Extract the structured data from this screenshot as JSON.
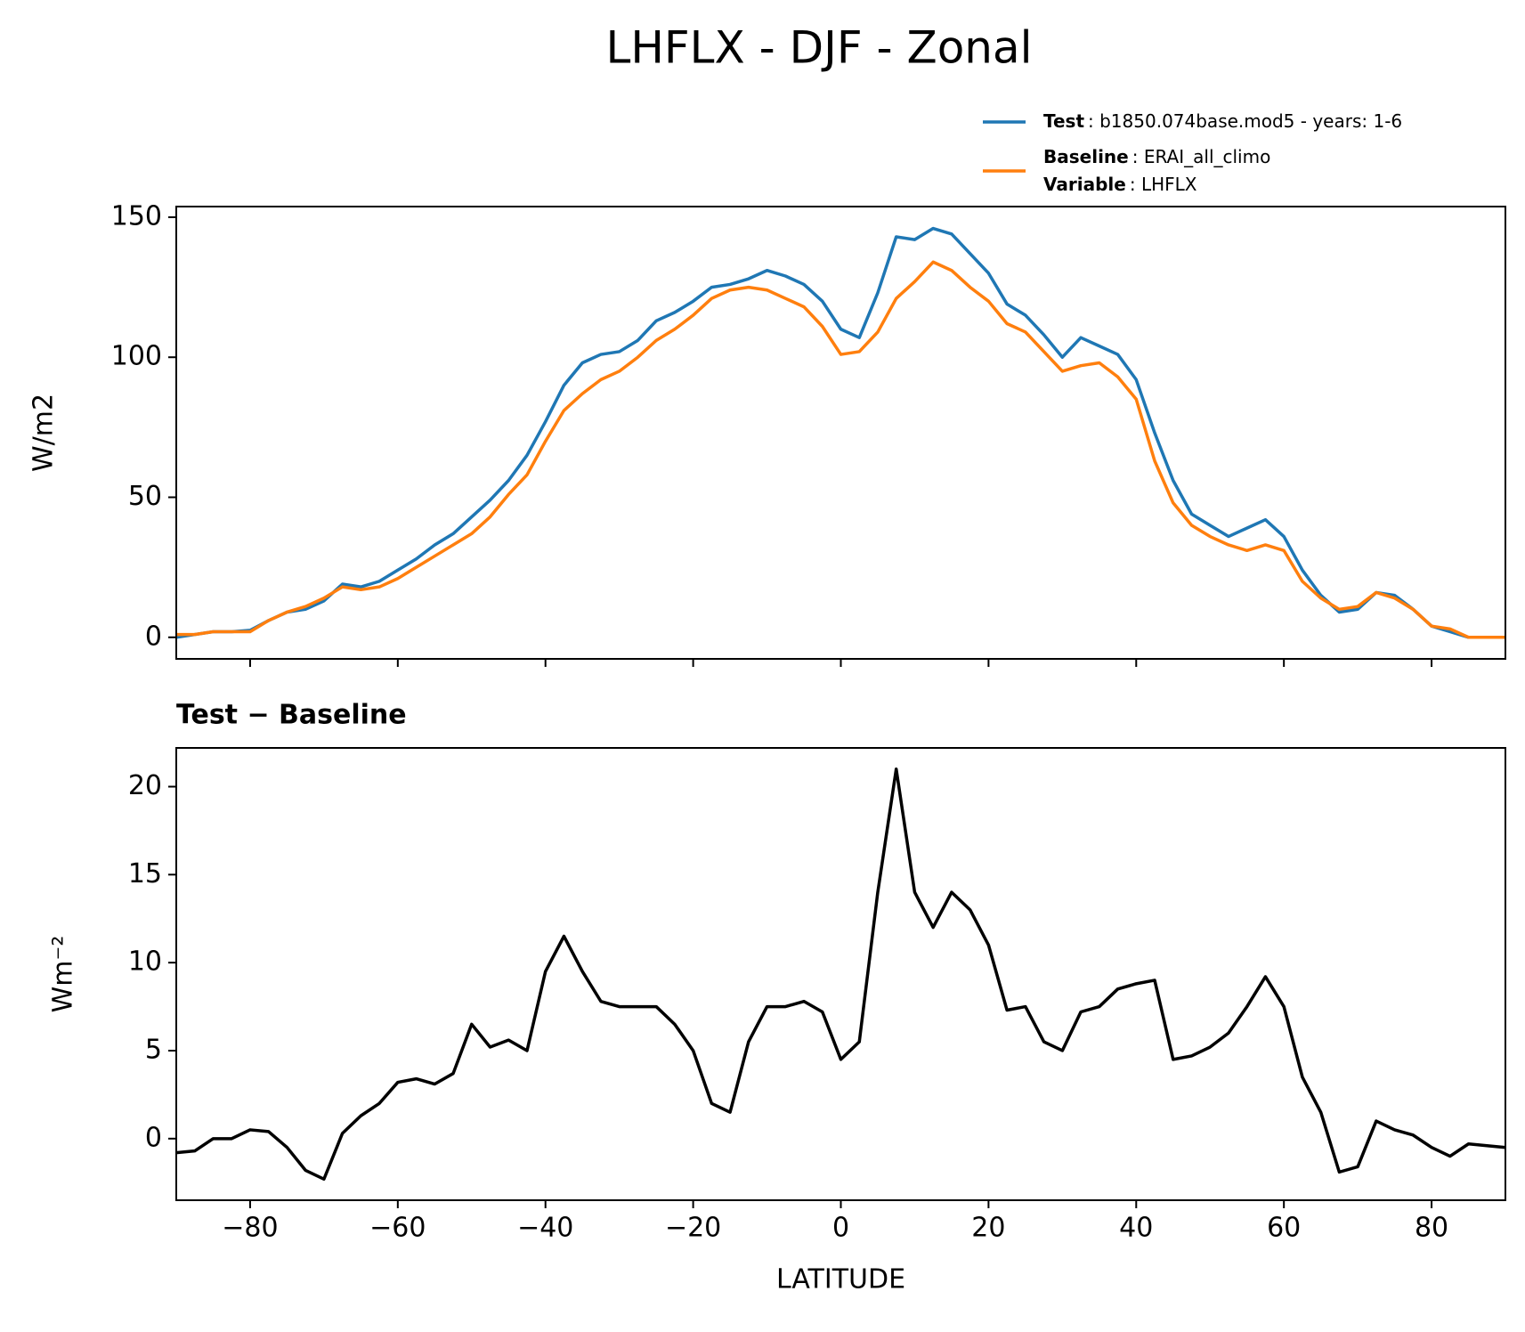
{
  "chart_data": [
    {
      "type": "line",
      "title": "LHFLX - DJF - Zonal",
      "ylabel": "W/m2",
      "x": [
        -90,
        -87.5,
        -85,
        -82.5,
        -80,
        -77.5,
        -75,
        -72.5,
        -70,
        -67.5,
        -65,
        -62.5,
        -60,
        -57.5,
        -55,
        -52.5,
        -50,
        -47.5,
        -45,
        -42.5,
        -40,
        -37.5,
        -35,
        -32.5,
        -30,
        -27.5,
        -25,
        -22.5,
        -20,
        -17.5,
        -15,
        -12.5,
        -10,
        -7.5,
        -5,
        -2.5,
        0,
        2.5,
        5,
        7.5,
        10,
        12.5,
        15,
        17.5,
        20,
        22.5,
        25,
        27.5,
        30,
        32.5,
        35,
        37.5,
        40,
        42.5,
        45,
        47.5,
        50,
        52.5,
        55,
        57.5,
        60,
        62.5,
        65,
        67.5,
        70,
        72.5,
        75,
        77.5,
        80,
        82.5,
        85,
        87.5,
        90
      ],
      "series": [
        {
          "name": "Test",
          "description": ": b1850.074base.mod5 - years: 1-6",
          "color": "#1f77b4",
          "values": [
            0,
            1,
            2,
            2,
            2.5,
            6,
            9,
            10,
            13,
            19,
            18,
            20,
            24,
            28,
            33,
            37,
            43,
            49,
            56,
            65,
            77,
            90,
            98,
            101,
            102,
            106,
            113,
            116,
            120,
            125,
            126,
            128,
            131,
            129,
            126,
            120,
            110,
            107,
            123,
            143,
            142,
            146,
            144,
            137,
            130,
            119,
            115,
            108,
            100,
            107,
            104,
            101,
            92,
            73,
            56,
            44,
            40,
            36,
            39,
            42,
            36,
            24,
            15,
            9,
            10,
            16,
            15,
            10,
            4,
            2,
            0,
            0,
            0
          ]
        },
        {
          "name": "Baseline",
          "description": ": ERAI_all_climo",
          "color": "#ff7f0e",
          "values": [
            1,
            1,
            2,
            2,
            2,
            6,
            9,
            11,
            14,
            18,
            17,
            18,
            21,
            25,
            29,
            33,
            37,
            43,
            51,
            58,
            70,
            81,
            87,
            92,
            95,
            100,
            106,
            110,
            115,
            121,
            124,
            125,
            124,
            121,
            118,
            111,
            101,
            102,
            109,
            121,
            127,
            134,
            131,
            125,
            120,
            112,
            109,
            102,
            95,
            97,
            98,
            93,
            85,
            63,
            48,
            40,
            36,
            33,
            31,
            33,
            31,
            20,
            14,
            10,
            11,
            16,
            14,
            10,
            4,
            3,
            0,
            0,
            0
          ]
        }
      ],
      "variable_name": "Variable",
      "variable_description": ": LHFLX",
      "xlim": [
        -90,
        90
      ],
      "xticks": [
        -80,
        -60,
        -40,
        -20,
        0,
        20,
        40,
        60,
        80
      ],
      "xticklabels": false,
      "ylim": [
        -7.7,
        153.8
      ],
      "yticks": [
        0,
        50,
        100,
        150
      ]
    },
    {
      "type": "line",
      "title": "Test − Baseline",
      "ylabel": "Wm⁻²",
      "xlabel": "LATITUDE",
      "x": [
        -90,
        -87.5,
        -85,
        -82.5,
        -80,
        -77.5,
        -75,
        -72.5,
        -70,
        -67.5,
        -65,
        -62.5,
        -60,
        -57.5,
        -55,
        -52.5,
        -50,
        -47.5,
        -45,
        -42.5,
        -40,
        -37.5,
        -35,
        -32.5,
        -30,
        -27.5,
        -25,
        -22.5,
        -20,
        -17.5,
        -15,
        -12.5,
        -10,
        -7.5,
        -5,
        -2.5,
        0,
        2.5,
        5,
        7.5,
        10,
        12.5,
        15,
        17.5,
        20,
        22.5,
        25,
        27.5,
        30,
        32.5,
        35,
        37.5,
        40,
        42.5,
        45,
        47.5,
        50,
        52.5,
        55,
        57.5,
        60,
        62.5,
        65,
        67.5,
        70,
        72.5,
        75,
        77.5,
        80,
        82.5,
        85,
        87.5,
        90
      ],
      "series": [
        {
          "color": "#000000",
          "values": [
            -0.8,
            -0.7,
            0,
            0,
            0.5,
            0.4,
            -0.5,
            -1.8,
            -2.3,
            0.3,
            1.3,
            2.0,
            3.2,
            3.4,
            3.1,
            3.7,
            6.5,
            5.2,
            5.6,
            5.0,
            9.5,
            11.5,
            9.5,
            7.8,
            7.5,
            7.5,
            7.5,
            6.5,
            5.0,
            2.0,
            1.5,
            5.5,
            7.5,
            7.5,
            7.8,
            7.2,
            4.5,
            5.5,
            14,
            21,
            14,
            12,
            14,
            13,
            11,
            7.3,
            7.5,
            5.5,
            5.0,
            7.2,
            7.5,
            8.5,
            8.8,
            9.0,
            4.5,
            4.7,
            5.2,
            6.0,
            7.5,
            9.2,
            7.5,
            3.5,
            1.5,
            -1.9,
            -1.6,
            1.0,
            0.5,
            0.2,
            -0.5,
            -1.0,
            -0.3,
            -0.4,
            -0.5
          ]
        }
      ],
      "xlim": [
        -90,
        90
      ],
      "xticks": [
        {
          "value": -80,
          "label": "−80"
        },
        {
          "value": -60,
          "label": "−60"
        },
        {
          "value": -40,
          "label": "−40"
        },
        {
          "value": -20,
          "label": "−20"
        },
        0,
        20,
        40,
        60,
        80
      ],
      "ylim": [
        -3.5,
        22.2
      ],
      "yticks": [
        0,
        5,
        10,
        15,
        20
      ]
    }
  ]
}
